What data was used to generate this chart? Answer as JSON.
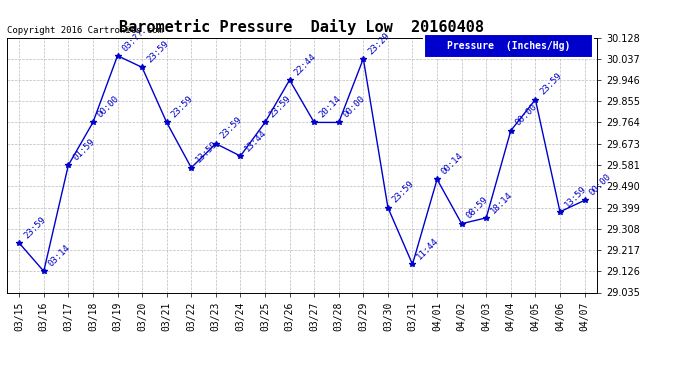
{
  "title": "Barometric Pressure  Daily Low  20160408",
  "legend_label": "Pressure  (Inches/Hg)",
  "copyright": "Copyright 2016 Cartronics.com",
  "x_labels": [
    "03/15",
    "03/16",
    "03/17",
    "03/18",
    "03/19",
    "03/20",
    "03/21",
    "03/22",
    "03/23",
    "03/24",
    "03/25",
    "03/26",
    "03/27",
    "03/28",
    "03/29",
    "03/30",
    "03/31",
    "04/01",
    "04/02",
    "04/03",
    "04/04",
    "04/05",
    "04/06",
    "04/07"
  ],
  "y_values": [
    29.247,
    29.126,
    29.581,
    29.764,
    30.05,
    30.0,
    29.764,
    29.57,
    29.673,
    29.62,
    29.764,
    29.946,
    29.764,
    29.764,
    30.037,
    29.399,
    29.156,
    29.52,
    29.33,
    29.355,
    29.729,
    29.862,
    29.381,
    29.43
  ],
  "point_labels": [
    "23:59",
    "03:14",
    "01:59",
    "00:00",
    "03:??",
    "23:59",
    "23:59",
    "13:59",
    "23:59",
    "13:44",
    "23:59",
    "22:44",
    "20:14",
    "00:00",
    "23:29",
    "23:59",
    "11:44",
    "00:14",
    "08:59",
    "18:14",
    "00:00",
    "23:59",
    "13:59",
    "00:00"
  ],
  "ylim": [
    29.035,
    30.128
  ],
  "yticks": [
    29.035,
    29.126,
    29.217,
    29.308,
    29.399,
    29.49,
    29.581,
    29.673,
    29.764,
    29.855,
    29.946,
    30.037,
    30.128
  ],
  "line_color": "#0000cc",
  "marker_color": "#0000cc",
  "background_color": "#ffffff",
  "grid_color": "#bbbbbb",
  "title_fontsize": 11,
  "label_fontsize": 7,
  "point_label_fontsize": 6.5,
  "legend_bg_color": "#0000cc",
  "legend_text_color": "#ffffff"
}
